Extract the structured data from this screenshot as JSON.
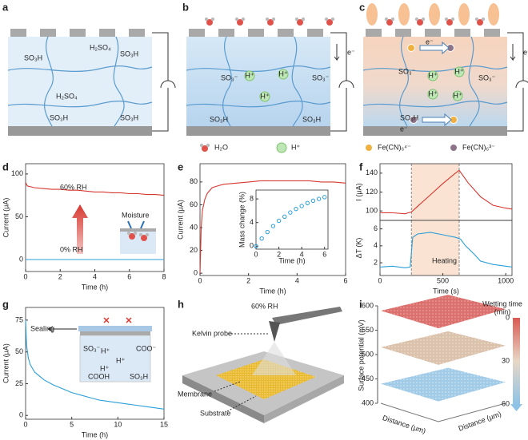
{
  "panel_labels": [
    "a",
    "b",
    "c",
    "d",
    "e",
    "f",
    "g",
    "h",
    "i"
  ],
  "schematic_a": {
    "labels": [
      "SO₃H",
      "H₂SO₄",
      "SO₃H",
      "H₂SO₄",
      "SO₃H",
      "SO₃H"
    ]
  },
  "schematic_b": {
    "labels": [
      "e⁻",
      "SO₃⁻",
      "H⁺",
      "H⁺",
      "H⁺",
      "SO₃⁻",
      "SO₃H",
      "SO₃H"
    ]
  },
  "schematic_c": {
    "labels": [
      "e⁻",
      "e⁻",
      "SO₃⁻",
      "H⁺",
      "H⁺",
      "H⁺",
      "H⁺",
      "SO₃⁻",
      "SO₃H",
      "e⁻"
    ]
  },
  "legend": [
    "H₂O",
    "H⁺",
    "Fe(CN)₆⁴⁻",
    "Fe(CN)₆³⁻"
  ],
  "chart_data": [
    {
      "type": "line",
      "xlabel": "Time (h)",
      "ylabel": "Current (μA)",
      "x": [
        0,
        0.1,
        0.5,
        1,
        1.5,
        2,
        2.5,
        3,
        3.5,
        4,
        4.5,
        5,
        5.5,
        6,
        6.5,
        7,
        7.5,
        8
      ],
      "series": [
        {
          "color": "#d7372f",
          "values": [
            90,
            86,
            84,
            83,
            82,
            82,
            81,
            81,
            80,
            79,
            79,
            78,
            78,
            77,
            77,
            76,
            76,
            75
          ]
        },
        {
          "color": "#2a9fd8",
          "values": [
            0,
            0,
            0,
            0,
            0,
            0,
            0,
            0,
            0,
            0,
            0,
            0,
            0,
            0,
            0,
            0,
            0,
            0
          ]
        }
      ],
      "xlim": [
        0,
        8
      ],
      "xticks": [
        0,
        2,
        4,
        6,
        8
      ],
      "ylim": [
        -14,
        112
      ],
      "yticks": [
        0,
        50,
        100
      ],
      "annotations": [
        "60% RH",
        "0% RH",
        "Moisture"
      ]
    },
    {
      "type": "line",
      "xlabel": "Time (h)",
      "ylabel": "Current (μA)",
      "x": [
        0,
        0.05,
        0.1,
        0.2,
        0.3,
        0.5,
        0.8,
        1,
        1.5,
        2,
        2.5,
        3,
        3.5,
        4,
        4.5,
        5,
        5.5,
        6
      ],
      "series": [
        {
          "color": "#d7372f",
          "values": [
            0,
            40,
            55,
            65,
            70,
            75,
            77,
            78,
            79,
            80,
            81,
            81,
            81,
            81,
            81,
            80,
            80,
            79
          ]
        }
      ],
      "xlim": [
        0,
        6
      ],
      "xticks": [
        0,
        2,
        4,
        6
      ],
      "ylim": [
        -2,
        96
      ],
      "yticks": [
        0,
        20,
        40,
        60,
        80
      ]
    },
    {
      "type": "scatter",
      "xlabel": "Time (h)",
      "ylabel": "Mass change (%)",
      "x": [
        0,
        0.5,
        1,
        1.5,
        2,
        2.5,
        3,
        3.5,
        4,
        4.5,
        5,
        5.5,
        6
      ],
      "series": [
        {
          "color": "#2a9fd8",
          "values": [
            0,
            1.3,
            2.4,
            3.4,
            4.3,
            5.0,
            5.7,
            6.3,
            6.8,
            7.3,
            7.7,
            8.0,
            8.3
          ]
        }
      ],
      "xlim": [
        0,
        6.3
      ],
      "xticks": [
        0,
        2,
        4,
        6
      ],
      "ylim": [
        -0.5,
        9.5
      ],
      "yticks": [
        0,
        4,
        8
      ]
    },
    {
      "type": "line",
      "ylabel": "I (μA)",
      "x": [
        0,
        100,
        200,
        250,
        300,
        400,
        500,
        600,
        630,
        700,
        800,
        900,
        1000,
        1050
      ],
      "series": [
        {
          "color": "#d7372f",
          "values": [
            98,
            98,
            97,
            99,
            105,
            117,
            129,
            140,
            143,
            130,
            115,
            106,
            103,
            102
          ]
        }
      ],
      "xlim": [
        0,
        1050
      ],
      "ylim": [
        90,
        150
      ],
      "yticks": [
        100,
        120,
        140
      ],
      "span": [
        250,
        630
      ]
    },
    {
      "type": "line",
      "xlabel": "Time (s)",
      "ylabel": "ΔT (K)",
      "x": [
        0,
        100,
        200,
        240,
        260,
        300,
        400,
        500,
        600,
        640,
        680,
        750,
        800,
        900,
        1000,
        1050
      ],
      "series": [
        {
          "color": "#2a9fd8",
          "values": [
            1.5,
            1.6,
            1.4,
            1.5,
            5.0,
            5.4,
            5.6,
            5.3,
            5.0,
            4.8,
            4.0,
            3.0,
            2.2,
            1.8,
            1.6,
            1.5
          ]
        }
      ],
      "xlim": [
        0,
        1050
      ],
      "xticks": [
        0,
        500,
        1000
      ],
      "ylim": [
        0.5,
        7
      ],
      "yticks": [
        2,
        4,
        6
      ],
      "annotations": [
        "Heating"
      ]
    },
    {
      "type": "line",
      "xlabel": "Time (h)",
      "ylabel": "Current (μA)",
      "x": [
        0,
        0.1,
        0.3,
        0.5,
        1,
        2,
        3,
        4,
        5,
        6,
        7,
        8,
        9,
        10,
        11,
        12,
        13,
        14,
        15
      ],
      "series": [
        {
          "color": "#2a9fd8",
          "values": [
            75,
            55,
            45,
            40,
            34,
            28,
            24,
            21,
            18,
            16,
            14,
            12,
            11,
            10,
            9,
            8,
            7,
            6,
            5
          ]
        }
      ],
      "xlim": [
        0,
        15
      ],
      "xticks": [
        0,
        5,
        10,
        15
      ],
      "ylim": [
        -3,
        85
      ],
      "yticks": [
        0,
        25,
        50,
        75
      ],
      "annotations": [
        "Sealing",
        "SO₃⁻",
        "COO⁻",
        "H⁺",
        "H⁺",
        "H⁺",
        "COOH",
        "SO₃H"
      ]
    }
  ],
  "schematic_h": {
    "labels": [
      "60% RH",
      "Kelvin probe",
      "Membrane",
      "Substrate"
    ]
  },
  "plot_i": {
    "zlabel": "Surface potential (mV)",
    "zlim": [
      400,
      600
    ],
    "zticks": [
      400,
      450,
      500,
      550,
      600
    ],
    "layer_values": [
      590,
      515,
      440
    ],
    "xlabel": "Distance (μm)",
    "ylabel": "Distance (μm)",
    "colorbar_title": [
      "Wetting time",
      "(min)"
    ],
    "colorbar_lim": [
      0,
      60
    ],
    "colorbar_ticks": [
      0,
      30,
      60
    ]
  }
}
